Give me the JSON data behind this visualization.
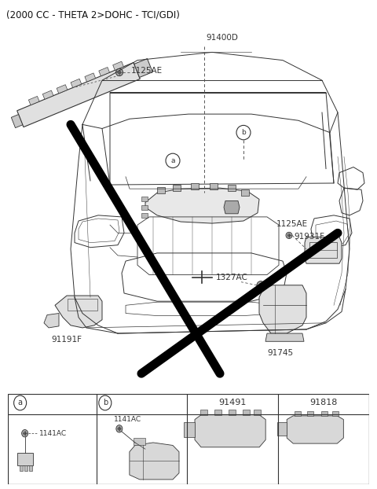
{
  "title": "(2000 CC - THETA 2>DOHC - TCI/GDI)",
  "bg_color": "#ffffff",
  "lc": "#333333",
  "dc": "#555555",
  "tc": "#000000",
  "labels": {
    "1125AE_top": "1125AE",
    "91400D": "91400D",
    "1125AE_right": "1125AE",
    "91931F": "91931F",
    "1327AC": "1327AC",
    "91745": "91745",
    "91191F": "91191F"
  },
  "bottom_labels": [
    "a",
    "b",
    "91491",
    "91818"
  ],
  "bottom_sub": [
    "1141AC",
    "1141AC"
  ],
  "thick_lines": [
    [
      [
        90,
        155
      ],
      [
        280,
        465
      ]
    ],
    [
      [
        180,
        465
      ],
      [
        430,
        290
      ]
    ]
  ],
  "car_color": "#444444"
}
